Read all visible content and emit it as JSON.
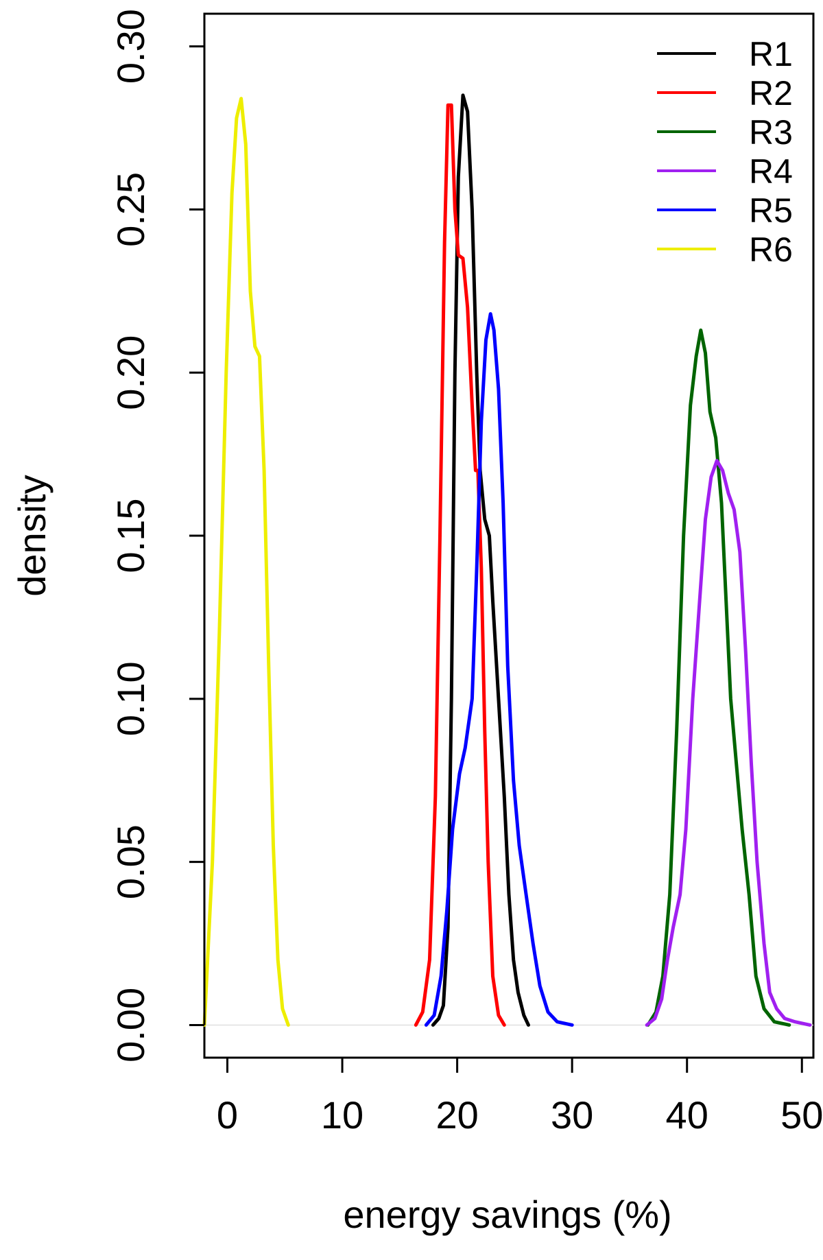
{
  "chart_data": {
    "type": "line",
    "xlabel": "energy savings (%)",
    "ylabel": "density",
    "xlim": [
      -2,
      51
    ],
    "ylim": [
      -0.01,
      0.31
    ],
    "xticks": [
      "0",
      "10",
      "20",
      "30",
      "40",
      "50"
    ],
    "yticks": [
      "0.00",
      "0.05",
      "0.10",
      "0.15",
      "0.20",
      "0.25",
      "0.30"
    ],
    "legend": {
      "position": "top-right",
      "box": false
    },
    "grid": false,
    "baseline_zero_line": true,
    "series": [
      {
        "name": "R1",
        "color": "#000000",
        "points": [
          [
            17.9,
            0
          ],
          [
            18.4,
            0.002
          ],
          [
            18.8,
            0.006
          ],
          [
            19.2,
            0.03
          ],
          [
            19.5,
            0.1
          ],
          [
            19.8,
            0.2
          ],
          [
            20.1,
            0.26
          ],
          [
            20.5,
            0.285
          ],
          [
            20.9,
            0.28
          ],
          [
            21.3,
            0.25
          ],
          [
            21.7,
            0.2
          ],
          [
            22.0,
            0.17
          ],
          [
            22.4,
            0.155
          ],
          [
            22.8,
            0.15
          ],
          [
            23.1,
            0.13
          ],
          [
            23.6,
            0.1
          ],
          [
            24.1,
            0.07
          ],
          [
            24.5,
            0.04
          ],
          [
            24.9,
            0.02
          ],
          [
            25.3,
            0.01
          ],
          [
            25.8,
            0.003
          ],
          [
            26.2,
            0
          ]
        ]
      },
      {
        "name": "R2",
        "color": "#ff0000",
        "points": [
          [
            16.4,
            0
          ],
          [
            17.0,
            0.004
          ],
          [
            17.6,
            0.02
          ],
          [
            18.1,
            0.07
          ],
          [
            18.5,
            0.15
          ],
          [
            18.9,
            0.24
          ],
          [
            19.2,
            0.282
          ],
          [
            19.5,
            0.282
          ],
          [
            19.8,
            0.25
          ],
          [
            20.1,
            0.236
          ],
          [
            20.5,
            0.235
          ],
          [
            20.9,
            0.22
          ],
          [
            21.3,
            0.19
          ],
          [
            21.6,
            0.17
          ],
          [
            21.8,
            0.17
          ],
          [
            22.1,
            0.14
          ],
          [
            22.4,
            0.09
          ],
          [
            22.7,
            0.05
          ],
          [
            23.1,
            0.015
          ],
          [
            23.6,
            0.003
          ],
          [
            24.1,
            0
          ]
        ]
      },
      {
        "name": "R3",
        "color": "#006400",
        "points": [
          [
            36.6,
            0
          ],
          [
            37.3,
            0.004
          ],
          [
            37.9,
            0.015
          ],
          [
            38.5,
            0.04
          ],
          [
            39.1,
            0.09
          ],
          [
            39.7,
            0.15
          ],
          [
            40.3,
            0.19
          ],
          [
            40.8,
            0.205
          ],
          [
            41.2,
            0.213
          ],
          [
            41.6,
            0.206
          ],
          [
            42.0,
            0.188
          ],
          [
            42.5,
            0.18
          ],
          [
            43.0,
            0.16
          ],
          [
            43.4,
            0.13
          ],
          [
            43.8,
            0.1
          ],
          [
            44.3,
            0.08
          ],
          [
            44.8,
            0.06
          ],
          [
            45.4,
            0.04
          ],
          [
            46.0,
            0.015
          ],
          [
            46.7,
            0.005
          ],
          [
            47.6,
            0.001
          ],
          [
            48.9,
            0
          ]
        ]
      },
      {
        "name": "R4",
        "color": "#a020f0",
        "points": [
          [
            36.5,
            0
          ],
          [
            37.2,
            0.002
          ],
          [
            37.8,
            0.008
          ],
          [
            38.3,
            0.02
          ],
          [
            38.8,
            0.03
          ],
          [
            39.4,
            0.04
          ],
          [
            39.9,
            0.06
          ],
          [
            40.5,
            0.1
          ],
          [
            41.1,
            0.13
          ],
          [
            41.6,
            0.155
          ],
          [
            42.1,
            0.168
          ],
          [
            42.6,
            0.173
          ],
          [
            43.1,
            0.17
          ],
          [
            43.6,
            0.163
          ],
          [
            44.1,
            0.158
          ],
          [
            44.6,
            0.145
          ],
          [
            45.1,
            0.115
          ],
          [
            45.6,
            0.08
          ],
          [
            46.1,
            0.05
          ],
          [
            46.7,
            0.025
          ],
          [
            47.2,
            0.01
          ],
          [
            47.8,
            0.005
          ],
          [
            48.5,
            0.002
          ],
          [
            49.4,
            0.001
          ],
          [
            50.7,
            0
          ]
        ]
      },
      {
        "name": "R5",
        "color": "#0000ff",
        "points": [
          [
            17.3,
            0
          ],
          [
            18.0,
            0.003
          ],
          [
            18.6,
            0.015
          ],
          [
            19.1,
            0.035
          ],
          [
            19.6,
            0.06
          ],
          [
            20.2,
            0.077
          ],
          [
            20.7,
            0.085
          ],
          [
            21.3,
            0.1
          ],
          [
            21.7,
            0.14
          ],
          [
            22.1,
            0.185
          ],
          [
            22.5,
            0.21
          ],
          [
            22.9,
            0.218
          ],
          [
            23.2,
            0.213
          ],
          [
            23.6,
            0.195
          ],
          [
            24.0,
            0.16
          ],
          [
            24.4,
            0.11
          ],
          [
            24.9,
            0.075
          ],
          [
            25.4,
            0.055
          ],
          [
            26.0,
            0.04
          ],
          [
            26.6,
            0.025
          ],
          [
            27.2,
            0.012
          ],
          [
            27.9,
            0.004
          ],
          [
            28.7,
            0.001
          ],
          [
            30.0,
            0
          ]
        ]
      },
      {
        "name": "R6",
        "color": "#eeee00",
        "points": [
          [
            -2.0,
            0
          ],
          [
            -1.3,
            0.05
          ],
          [
            -0.7,
            0.12
          ],
          [
            -0.1,
            0.2
          ],
          [
            0.4,
            0.255
          ],
          [
            0.8,
            0.278
          ],
          [
            1.2,
            0.284
          ],
          [
            1.6,
            0.27
          ],
          [
            2.0,
            0.225
          ],
          [
            2.4,
            0.208
          ],
          [
            2.8,
            0.205
          ],
          [
            3.2,
            0.17
          ],
          [
            3.6,
            0.11
          ],
          [
            4.0,
            0.055
          ],
          [
            4.4,
            0.02
          ],
          [
            4.8,
            0.005
          ],
          [
            5.3,
            0
          ]
        ]
      }
    ]
  }
}
